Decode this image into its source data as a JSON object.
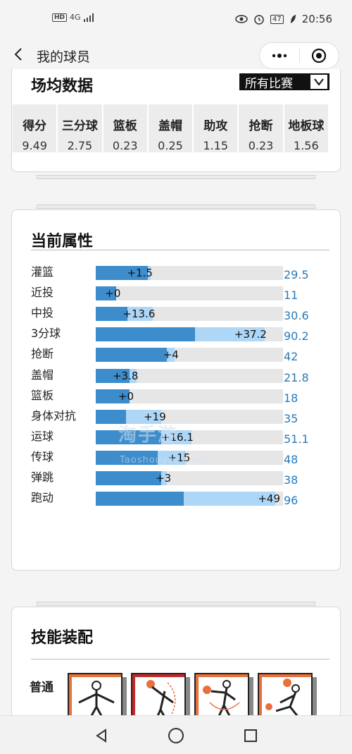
{
  "status": {
    "network": "4G",
    "battery": "47",
    "time": "20:56"
  },
  "nav": {
    "title": "我的球员"
  },
  "averages": {
    "title": "场均数据",
    "filter": "所有比赛",
    "columns": [
      {
        "label": "得分",
        "value": "9.49"
      },
      {
        "label": "三分球",
        "value": "2.75"
      },
      {
        "label": "篮板",
        "value": "0.23"
      },
      {
        "label": "盖帽",
        "value": "0.25"
      },
      {
        "label": "助攻",
        "value": "1.15"
      },
      {
        "label": "抢断",
        "value": "0.23"
      },
      {
        "label": "地板球",
        "value": "1.56"
      }
    ]
  },
  "attributes": {
    "title": "当前属性",
    "max": 100,
    "items": [
      {
        "label": "灌篮",
        "bonus": "+1.5",
        "bonus_value": 1.5,
        "total": "29.5",
        "total_value": 29.5
      },
      {
        "label": "近投",
        "bonus": "+0",
        "bonus_value": 0,
        "total": "11",
        "total_value": 11
      },
      {
        "label": "中投",
        "bonus": "+13.6",
        "bonus_value": 13.6,
        "total": "30.6",
        "total_value": 30.6
      },
      {
        "label": "3分球",
        "bonus": "+37.2",
        "bonus_value": 37.2,
        "total": "90.2",
        "total_value": 90.2
      },
      {
        "label": "抢断",
        "bonus": "+4",
        "bonus_value": 4,
        "total": "42",
        "total_value": 42
      },
      {
        "label": "盖帽",
        "bonus": "+3.8",
        "bonus_value": 3.8,
        "total": "21.8",
        "total_value": 21.8
      },
      {
        "label": "篮板",
        "bonus": "+0",
        "bonus_value": 0,
        "total": "18",
        "total_value": 18
      },
      {
        "label": "身体对抗",
        "bonus": "+19",
        "bonus_value": 19,
        "total": "35",
        "total_value": 35
      },
      {
        "label": "运球",
        "bonus": "+16.1",
        "bonus_value": 16.1,
        "total": "51.1",
        "total_value": 51.1
      },
      {
        "label": "传球",
        "bonus": "+15",
        "bonus_value": 15,
        "total": "48",
        "total_value": 48
      },
      {
        "label": "弹跳",
        "bonus": "+3",
        "bonus_value": 3,
        "total": "38",
        "total_value": 38
      },
      {
        "label": "跑动",
        "bonus": "+49",
        "bonus_value": 49,
        "total": "96",
        "total_value": 96
      }
    ]
  },
  "watermark": {
    "text": "淘手游",
    "sub": "Taoshouyou.Com"
  },
  "skills": {
    "title": "技能装配",
    "row_label": "普通"
  },
  "colors": {
    "base_bar": "#3d8ccc",
    "bonus_bar": "#aed6f6",
    "total_text": "#2a7ab8",
    "skill_orange": "#e8703a"
  }
}
